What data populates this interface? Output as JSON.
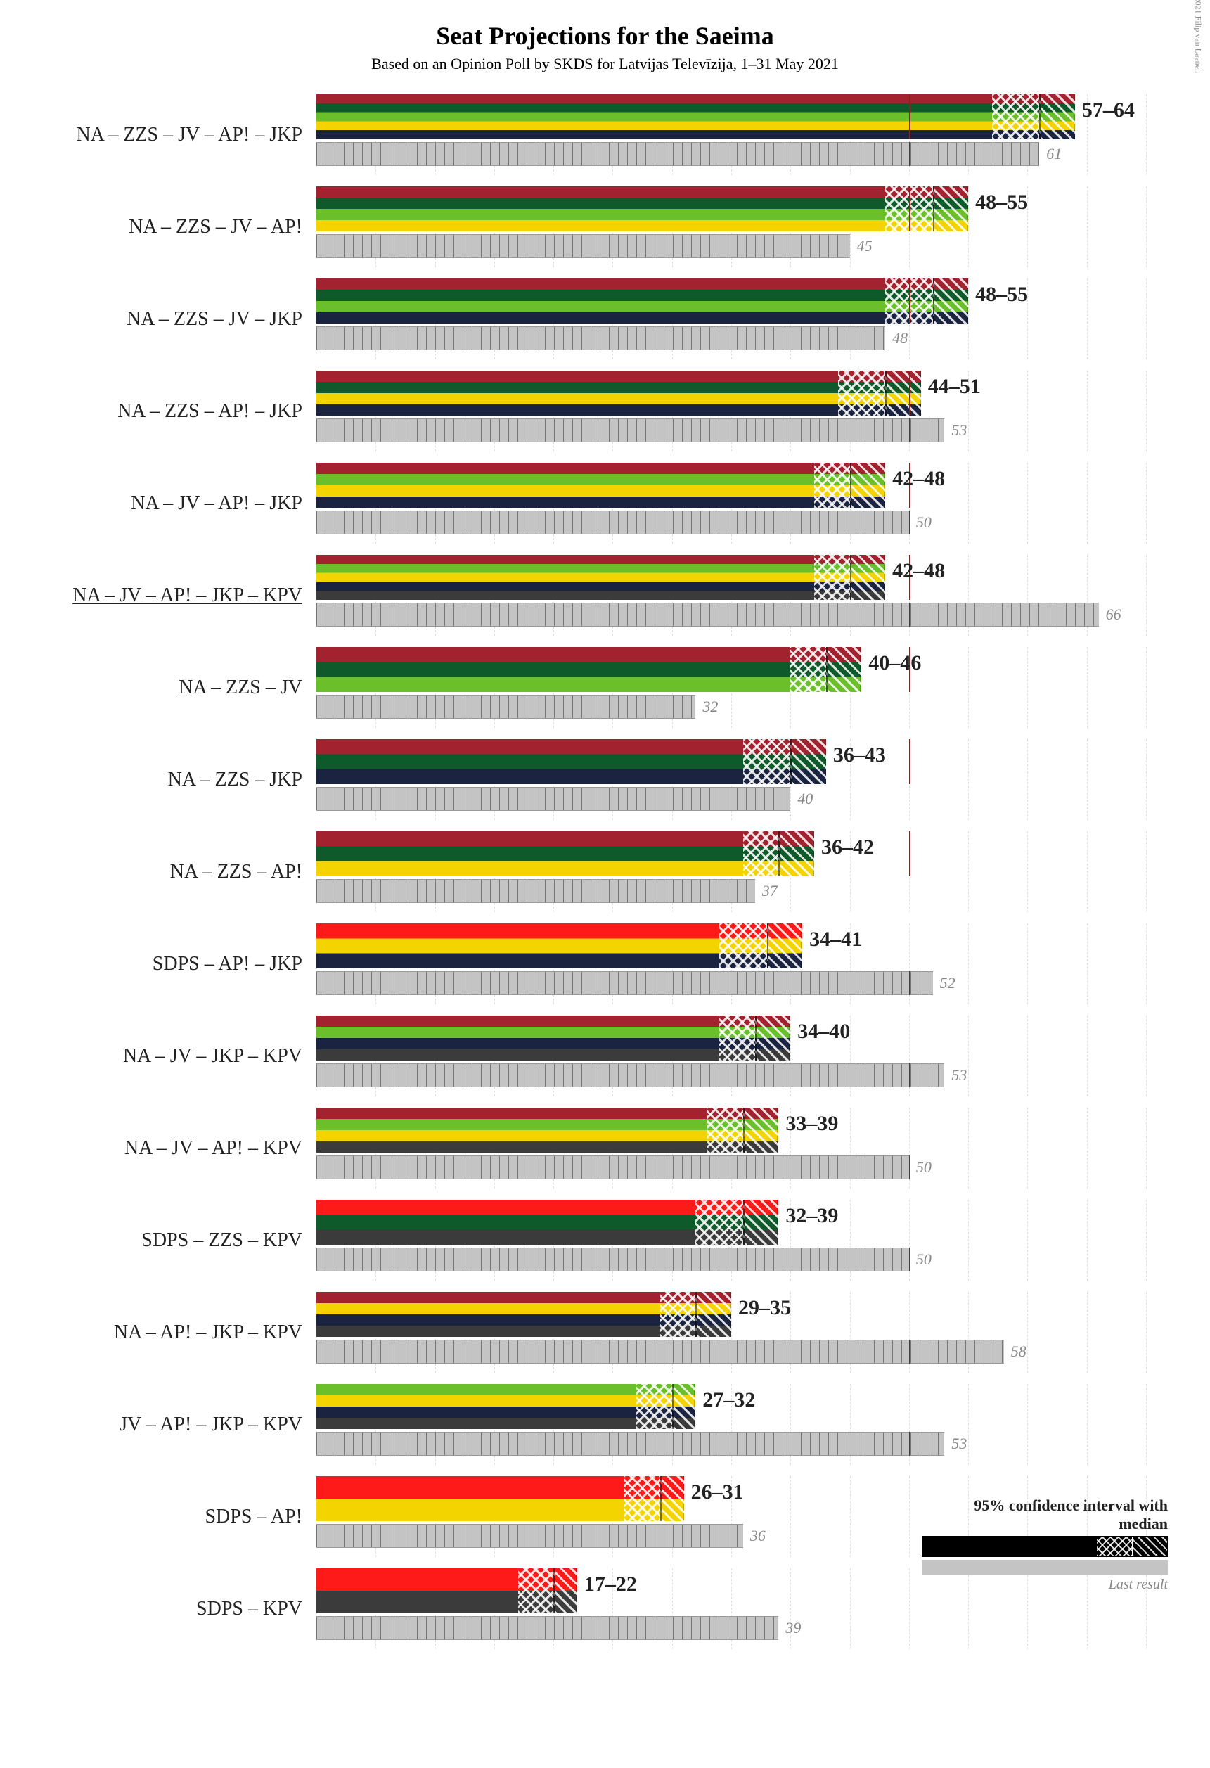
{
  "title": "Seat Projections for the Saeima",
  "subtitle": "Based on an Opinion Poll by SKDS for Latvijas Televīzija, 1–31 May 2021",
  "copyright": "© 2021 Filip van Laenen",
  "axis": {
    "max_seats": 70,
    "tick_step": 5,
    "majority_threshold": 50
  },
  "typography": {
    "title_fontsize": 36,
    "subtitle_fontsize": 22,
    "label_fontsize": 28,
    "range_fontsize": 30,
    "last_fontsize": 22,
    "text_color": "#222222",
    "muted_color": "#888888"
  },
  "palette": {
    "NA": "#a2232f",
    "ZZS": "#0e5a2a",
    "JV": "#6bbf2a",
    "AP": "#f4d400",
    "JKP": "#1a2340",
    "KPV": "#3b3b3b",
    "SDPS": "#ff1a1a",
    "last_bar": "#c4c4c4",
    "majority_line": "#8a2020",
    "grid": "#e0e0e0"
  },
  "coalitions": [
    {
      "label": "NA – ZZS – JV – AP! – JKP",
      "parties": [
        "NA",
        "ZZS",
        "JV",
        "AP",
        "JKP"
      ],
      "low": 57,
      "median": 61,
      "high": 64,
      "last": 61,
      "underline": false
    },
    {
      "label": "NA – ZZS – JV – AP!",
      "parties": [
        "NA",
        "ZZS",
        "JV",
        "AP"
      ],
      "low": 48,
      "median": 52,
      "high": 55,
      "last": 45,
      "underline": false
    },
    {
      "label": "NA – ZZS – JV – JKP",
      "parties": [
        "NA",
        "ZZS",
        "JV",
        "JKP"
      ],
      "low": 48,
      "median": 52,
      "high": 55,
      "last": 48,
      "underline": false
    },
    {
      "label": "NA – ZZS – AP! – JKP",
      "parties": [
        "NA",
        "ZZS",
        "AP",
        "JKP"
      ],
      "low": 44,
      "median": 48,
      "high": 51,
      "last": 53,
      "underline": false
    },
    {
      "label": "NA – JV – AP! – JKP",
      "parties": [
        "NA",
        "JV",
        "AP",
        "JKP"
      ],
      "low": 42,
      "median": 45,
      "high": 48,
      "last": 50,
      "underline": false
    },
    {
      "label": "NA – JV – AP! – JKP – KPV",
      "parties": [
        "NA",
        "JV",
        "AP",
        "JKP",
        "KPV"
      ],
      "low": 42,
      "median": 45,
      "high": 48,
      "last": 66,
      "underline": true
    },
    {
      "label": "NA – ZZS – JV",
      "parties": [
        "NA",
        "ZZS",
        "JV"
      ],
      "low": 40,
      "median": 43,
      "high": 46,
      "last": 32,
      "underline": false
    },
    {
      "label": "NA – ZZS – JKP",
      "parties": [
        "NA",
        "ZZS",
        "JKP"
      ],
      "low": 36,
      "median": 40,
      "high": 43,
      "last": 40,
      "underline": false
    },
    {
      "label": "NA – ZZS – AP!",
      "parties": [
        "NA",
        "ZZS",
        "AP"
      ],
      "low": 36,
      "median": 39,
      "high": 42,
      "last": 37,
      "underline": false
    },
    {
      "label": "SDPS – AP! – JKP",
      "parties": [
        "SDPS",
        "AP",
        "JKP"
      ],
      "low": 34,
      "median": 38,
      "high": 41,
      "last": 52,
      "underline": false
    },
    {
      "label": "NA – JV – JKP – KPV",
      "parties": [
        "NA",
        "JV",
        "JKP",
        "KPV"
      ],
      "low": 34,
      "median": 37,
      "high": 40,
      "last": 53,
      "underline": false
    },
    {
      "label": "NA – JV – AP! – KPV",
      "parties": [
        "NA",
        "JV",
        "AP",
        "KPV"
      ],
      "low": 33,
      "median": 36,
      "high": 39,
      "last": 50,
      "underline": false
    },
    {
      "label": "SDPS – ZZS – KPV",
      "parties": [
        "SDPS",
        "ZZS",
        "KPV"
      ],
      "low": 32,
      "median": 36,
      "high": 39,
      "last": 50,
      "underline": false
    },
    {
      "label": "NA – AP! – JKP – KPV",
      "parties": [
        "NA",
        "AP",
        "JKP",
        "KPV"
      ],
      "low": 29,
      "median": 32,
      "high": 35,
      "last": 58,
      "underline": false
    },
    {
      "label": "JV – AP! – JKP – KPV",
      "parties": [
        "JV",
        "AP",
        "JKP",
        "KPV"
      ],
      "low": 27,
      "median": 30,
      "high": 32,
      "last": 53,
      "underline": false
    },
    {
      "label": "SDPS – AP!",
      "parties": [
        "SDPS",
        "AP"
      ],
      "low": 26,
      "median": 29,
      "high": 31,
      "last": 36,
      "underline": false
    },
    {
      "label": "SDPS – KPV",
      "parties": [
        "SDPS",
        "KPV"
      ],
      "low": 17,
      "median": 20,
      "high": 22,
      "last": 39,
      "underline": false
    }
  ],
  "legend": {
    "ci_label": "95% confidence interval with median",
    "last_label": "Last result"
  }
}
